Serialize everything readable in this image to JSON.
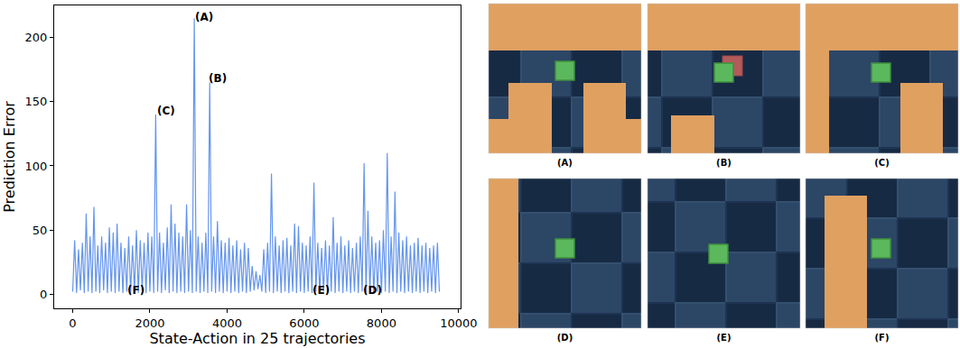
{
  "chart_data": {
    "type": "line",
    "x_label": "State-Action in 25 trajectories",
    "y_label": "Prediction Error",
    "color": "#6495ed",
    "xlim": [
      -480,
      10050
    ],
    "ylim": [
      -11,
      225
    ],
    "xticks": [
      0,
      2000,
      4000,
      6000,
      8000,
      10000
    ],
    "yticks": [
      0,
      50,
      100,
      150,
      200
    ],
    "grid": false,
    "x": [
      0,
      50,
      100,
      150,
      200,
      250,
      300,
      350,
      400,
      450,
      500,
      550,
      600,
      650,
      700,
      750,
      800,
      850,
      900,
      950,
      1000,
      1050,
      1100,
      1150,
      1200,
      1250,
      1300,
      1350,
      1400,
      1450,
      1500,
      1550,
      1600,
      1650,
      1700,
      1750,
      1800,
      1850,
      1900,
      1950,
      2000,
      2050,
      2100,
      2150,
      2200,
      2250,
      2300,
      2350,
      2400,
      2450,
      2500,
      2550,
      2600,
      2650,
      2700,
      2750,
      2800,
      2850,
      2900,
      2950,
      3000,
      3050,
      3100,
      3150,
      3200,
      3250,
      3300,
      3350,
      3400,
      3450,
      3500,
      3550,
      3600,
      3650,
      3700,
      3750,
      3800,
      3850,
      3900,
      3950,
      4000,
      4050,
      4100,
      4150,
      4200,
      4250,
      4300,
      4350,
      4400,
      4450,
      4500,
      4550,
      4600,
      4650,
      4700,
      4750,
      4800,
      4850,
      4900,
      4950,
      5000,
      5050,
      5100,
      5150,
      5200,
      5250,
      5300,
      5350,
      5400,
      5450,
      5500,
      5550,
      5600,
      5650,
      5700,
      5750,
      5800,
      5850,
      5900,
      5950,
      6000,
      6050,
      6100,
      6150,
      6200,
      6250,
      6300,
      6350,
      6400,
      6450,
      6500,
      6550,
      6600,
      6650,
      6700,
      6750,
      6800,
      6850,
      6900,
      6950,
      7000,
      7050,
      7100,
      7150,
      7200,
      7250,
      7300,
      7350,
      7400,
      7450,
      7500,
      7550,
      7600,
      7650,
      7700,
      7750,
      7800,
      7850,
      7900,
      7950,
      8000,
      8050,
      8100,
      8150,
      8200,
      8250,
      8300,
      8350,
      8400,
      8450,
      8500,
      8550,
      8600,
      8650,
      8700,
      8750,
      8800,
      8850,
      8900,
      8950,
      9000,
      9050,
      9100,
      9150,
      9200,
      9250,
      9300,
      9350,
      9400,
      9450,
      9500
    ],
    "values": [
      2,
      42,
      1,
      35,
      3,
      40,
      1,
      63,
      2,
      45,
      1,
      68,
      2,
      38,
      1,
      45,
      3,
      40,
      1,
      52,
      2,
      48,
      1,
      55,
      2,
      40,
      1,
      36,
      2,
      45,
      1,
      38,
      2,
      50,
      1,
      42,
      3,
      40,
      1,
      48,
      2,
      45,
      1,
      140,
      2,
      48,
      1,
      40,
      3,
      52,
      1,
      70,
      2,
      55,
      1,
      48,
      2,
      45,
      1,
      70,
      2,
      50,
      1,
      215,
      2,
      45,
      1,
      40,
      2,
      48,
      1,
      165,
      2,
      45,
      1,
      57,
      2,
      42,
      1,
      40,
      2,
      44,
      1,
      38,
      2,
      42,
      1,
      35,
      2,
      40,
      1,
      36,
      2,
      22,
      3,
      18,
      4,
      15,
      2,
      35,
      1,
      40,
      2,
      94,
      1,
      45,
      2,
      38,
      1,
      42,
      2,
      44,
      1,
      38,
      2,
      55,
      1,
      53,
      2,
      40,
      1,
      38,
      2,
      45,
      1,
      87,
      2,
      40,
      1,
      36,
      2,
      42,
      1,
      38,
      2,
      60,
      1,
      40,
      2,
      45,
      1,
      38,
      2,
      42,
      1,
      36,
      2,
      40,
      1,
      45,
      2,
      102,
      1,
      65,
      2,
      45,
      1,
      40,
      2,
      42,
      1,
      50,
      2,
      110,
      1,
      45,
      2,
      80,
      1,
      48,
      2,
      42,
      1,
      45,
      2,
      38,
      1,
      40,
      2,
      44,
      1,
      38,
      2,
      40,
      1,
      36,
      2,
      38,
      1,
      40,
      2
    ],
    "annotations": [
      {
        "text": "(A)",
        "x": 3410,
        "y": 216
      },
      {
        "text": "(B)",
        "x": 3760,
        "y": 168
      },
      {
        "text": "(C)",
        "x": 2410,
        "y": 143
      },
      {
        "text": "(F)",
        "x": 1640,
        "y": 3
      },
      {
        "text": "(E)",
        "x": 6430,
        "y": 3
      },
      {
        "text": "(D)",
        "x": 7760,
        "y": 3
      }
    ]
  },
  "panels": [
    {
      "label": "(A)"
    },
    {
      "label": "(B)"
    },
    {
      "label": "(C)"
    },
    {
      "label": "(D)"
    },
    {
      "label": "(E)"
    },
    {
      "label": "(F)"
    }
  ]
}
